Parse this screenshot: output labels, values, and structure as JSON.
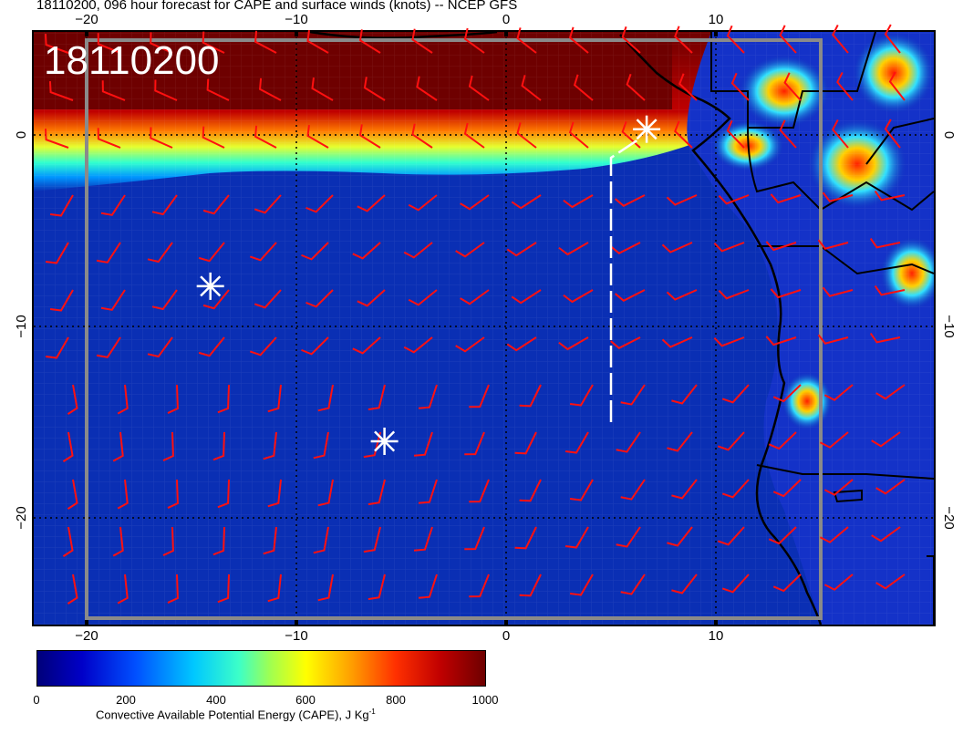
{
  "title": "18110200, 096 hour forecast for CAPE and surface winds (knots) -- NCEP GFS",
  "date_stamp": "18110200",
  "x_ticks": [
    "−20",
    "−10",
    "0",
    "10"
  ],
  "y_ticks": [
    "0",
    "−10",
    "−20"
  ],
  "colorbar": {
    "ticks": [
      "0",
      "200",
      "400",
      "600",
      "800",
      "1000"
    ],
    "label_main": "Convective Available Potential Energy (CAPE), J Kg",
    "label_sup": "-1",
    "range": [
      0,
      1000
    ]
  },
  "colors": {
    "ocean_low_cape": "#0a2fb4",
    "high_cape": "#6e0000",
    "wind_barbs": "#ff1010",
    "markers": "#ffffff",
    "coastline": "#000000"
  },
  "markers": [
    {
      "name": "marker-1",
      "lon": 6.7,
      "lat": 0.3
    },
    {
      "name": "marker-2",
      "lon": -14.1,
      "lat": -7.9
    },
    {
      "name": "marker-3",
      "lon": -5.8,
      "lat": -16.0
    }
  ],
  "track": {
    "start_lon": 5.0,
    "start_lat": -15.0,
    "end_lon": 6.7,
    "end_lat": 0.3
  },
  "map_extent": {
    "lon": [
      -22.6,
      20.4
    ],
    "lat": [
      -25.8,
      4.8
    ]
  }
}
